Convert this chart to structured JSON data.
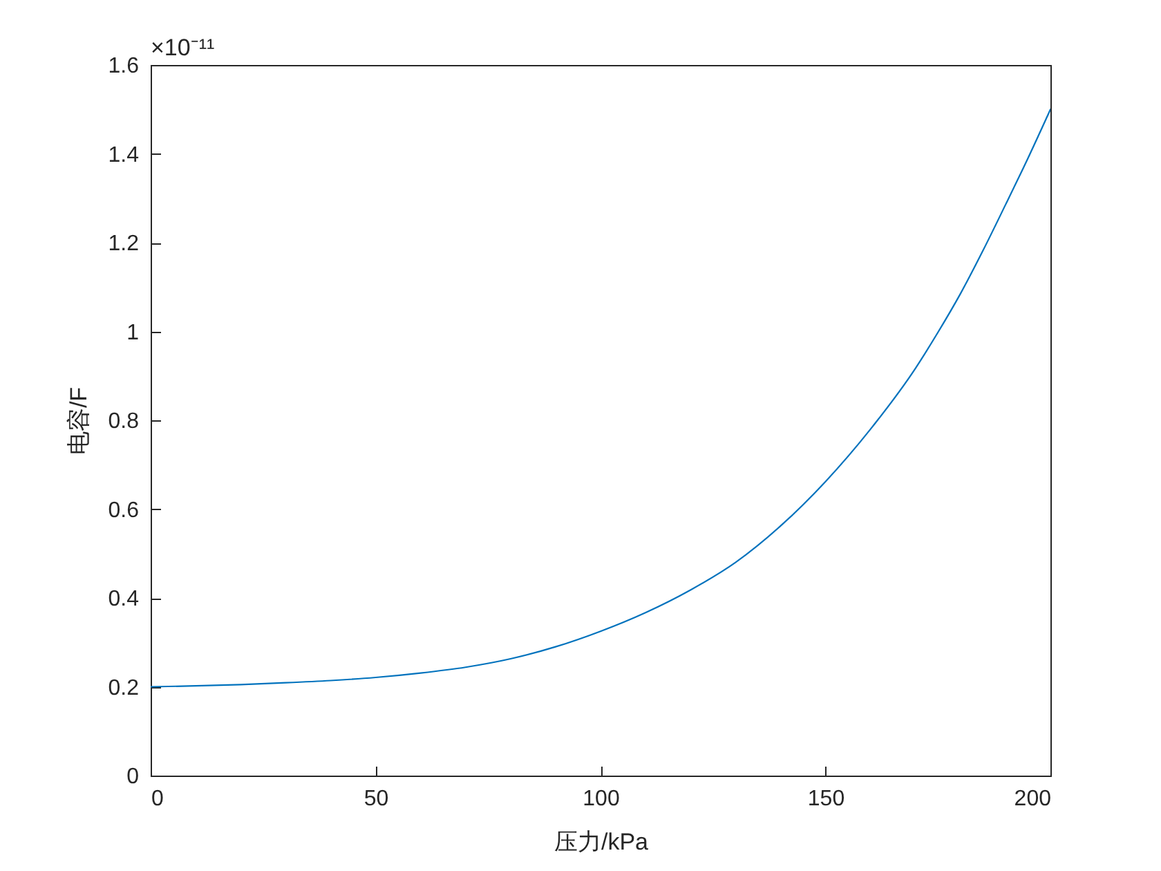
{
  "chart_data": {
    "type": "line",
    "xlabel": "压力/kPa",
    "ylabel": "电容/F",
    "x": [
      0,
      10,
      20,
      30,
      40,
      50,
      60,
      70,
      80,
      90,
      100,
      110,
      120,
      130,
      140,
      150,
      160,
      170,
      175,
      180,
      185,
      190,
      195,
      200
    ],
    "series": [
      {
        "color": "#0072bd",
        "values": [
          0.2,
          0.202,
          0.205,
          0.209,
          0.214,
          0.221,
          0.231,
          0.244,
          0.263,
          0.29,
          0.325,
          0.367,
          0.418,
          0.48,
          0.562,
          0.662,
          0.78,
          0.917,
          0.998,
          1.085,
          1.182,
          1.285,
          1.39,
          1.5
        ]
      }
    ],
    "xlim": [
      0,
      200
    ],
    "xticks": [
      0,
      50,
      100,
      150,
      200
    ],
    "ylim": [
      0,
      1.6
    ],
    "yticks": [
      0,
      0.2,
      0.4,
      0.6,
      0.8,
      1,
      1.2,
      1.4,
      1.6
    ],
    "grid": false,
    "marker": "none",
    "line_style": "solid",
    "annotations": [
      "×10⁻¹¹"
    ]
  }
}
